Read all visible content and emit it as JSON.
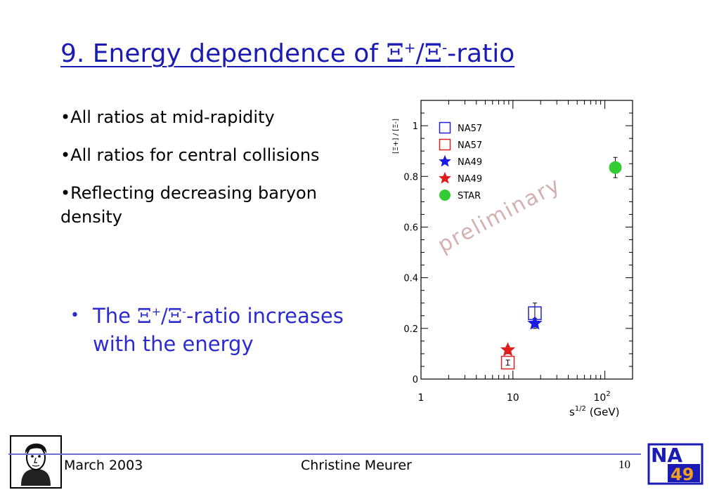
{
  "title": {
    "prefix": "9. Energy dependence of ",
    "xi": "Ξ",
    "sup_plus": "+",
    "slash": "/",
    "sup_minus": "-",
    "suffix": "-ratio"
  },
  "bullets": [
    "•All ratios at mid-rapidity",
    "•All ratios for central collisions",
    "•Reflecting decreasing baryon density"
  ],
  "conclusion": {
    "dot": "•",
    "prefix": "The ",
    "xi": "Ξ",
    "sup_plus": "+",
    "slash": "/",
    "sup_minus": "-",
    "suffix": "-ratio increases with the energy"
  },
  "footer": {
    "date": "March 2003",
    "author": "Christine Meurer",
    "page": "10",
    "logo_top": "NA",
    "logo_bottom": "49"
  },
  "colors": {
    "title": "#1a1ab4",
    "accent": "#2b2bd0",
    "na57_blue": "#2222cc",
    "na57_red": "#dd2222",
    "na49_blue": "#1a1ae6",
    "na49_red": "#e01c1c",
    "star_green": "#33cc33"
  },
  "chart_data": {
    "type": "scatter",
    "xscale": "log",
    "xlim": [
      1,
      200
    ],
    "ylim": [
      0,
      1.1
    ],
    "xlabel": "s^1/2 (GeV)",
    "ylabel": "[Ξ+] / [Ξ-]",
    "xticks": [
      {
        "v": 1,
        "label": "1"
      },
      {
        "v": 10,
        "label": "10"
      },
      {
        "v": 100,
        "label": "10^2"
      }
    ],
    "yticks": [
      {
        "v": 0,
        "label": "0"
      },
      {
        "v": 0.2,
        "label": "0.2"
      },
      {
        "v": 0.4,
        "label": "0.4"
      },
      {
        "v": 0.6,
        "label": "0.6"
      },
      {
        "v": 0.8,
        "label": "0.8"
      },
      {
        "v": 1,
        "label": "1"
      }
    ],
    "annotation": "preliminary",
    "legend_position": "top-left",
    "series": [
      {
        "name": "NA57",
        "marker": "open-square",
        "color": "#2222cc",
        "points": [
          {
            "x": 17.3,
            "y": 0.26,
            "err": 0.04
          }
        ]
      },
      {
        "name": "NA57",
        "marker": "open-square",
        "color": "#dd2222",
        "points": [
          {
            "x": 8.8,
            "y": 0.065,
            "err": 0.01
          }
        ]
      },
      {
        "name": "NA49",
        "marker": "star",
        "color": "#1a1ae6",
        "points": [
          {
            "x": 17.3,
            "y": 0.22,
            "err": 0.02
          }
        ]
      },
      {
        "name": "NA49",
        "marker": "star",
        "color": "#e01c1c",
        "points": [
          {
            "x": 8.8,
            "y": 0.115,
            "err": 0.015
          }
        ]
      },
      {
        "name": "STAR",
        "marker": "circle",
        "color": "#33cc33",
        "points": [
          {
            "x": 130,
            "y": 0.835,
            "err": 0.04
          }
        ]
      }
    ]
  }
}
